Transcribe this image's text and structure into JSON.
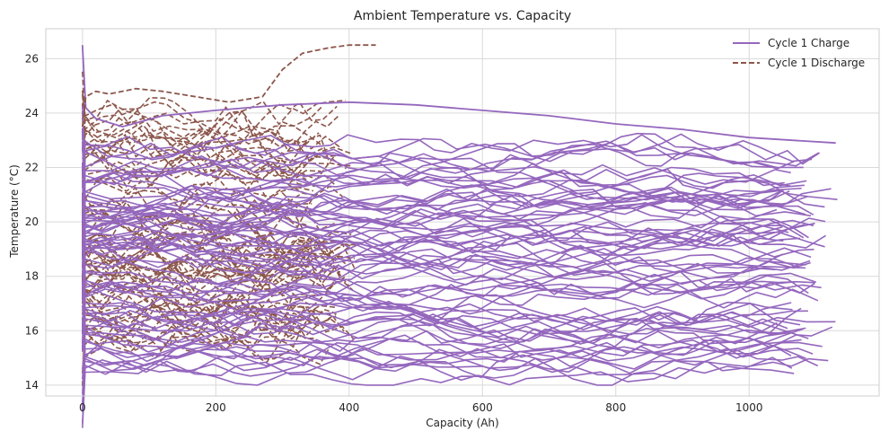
{
  "chart_data": {
    "type": "line",
    "title": "Ambient Temperature vs. Capacity",
    "xlabel": "Capacity (Ah)",
    "ylabel": "Temperature (°C)",
    "xlim": [
      -55,
      1195
    ],
    "ylim": [
      13.6,
      27.1
    ],
    "xticks": [
      0,
      200,
      400,
      600,
      800,
      1000
    ],
    "yticks": [
      14,
      16,
      18,
      20,
      22,
      24,
      26
    ],
    "grid": true,
    "legend_position": "top-right",
    "colors": {
      "charge": "#9467bd",
      "discharge": "#8c564b",
      "grid": "#d9d9d9",
      "axis": "#cccccc",
      "text": "#262626"
    },
    "series": [
      {
        "name": "Cycle 1 Charge",
        "style": "solid",
        "color": "#9467bd",
        "x": [
          0,
          5,
          20,
          60,
          120,
          200,
          300,
          400,
          500,
          600,
          700,
          800,
          900,
          1000,
          1130
        ],
        "y": [
          26.5,
          24.2,
          23.8,
          23.5,
          23.9,
          24.1,
          24.3,
          24.4,
          24.3,
          24.1,
          23.9,
          23.6,
          23.4,
          23.1,
          22.9
        ]
      },
      {
        "name": "Cycle 1 Discharge",
        "style": "dashed",
        "color": "#8c564b",
        "x": [
          0,
          5,
          20,
          40,
          80,
          120,
          170,
          220,
          270,
          300,
          330,
          370,
          400,
          440
        ],
        "y": [
          23.5,
          24.6,
          24.8,
          24.7,
          24.9,
          24.8,
          24.6,
          24.4,
          24.6,
          25.6,
          26.2,
          26.4,
          26.5,
          26.5
        ]
      }
    ]
  }
}
